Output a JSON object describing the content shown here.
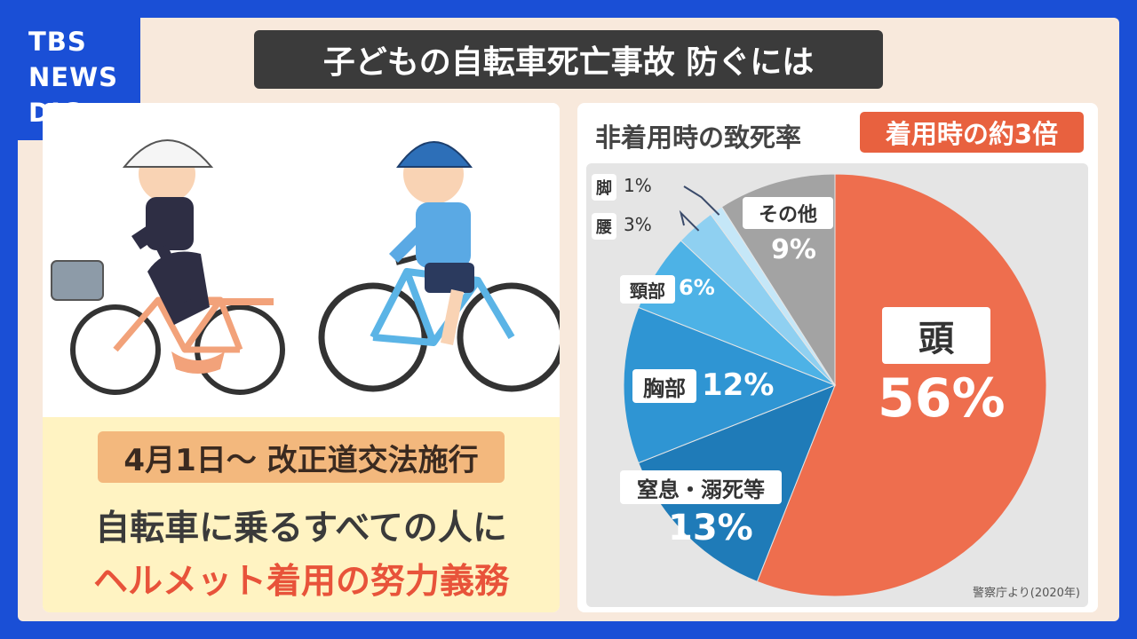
{
  "logo": {
    "line1": "TBS",
    "line2": "NEWS",
    "line3": "DIG"
  },
  "title": "子どもの自転車死亡事故 防ぐには",
  "left": {
    "date_law": "4月1日〜 改正道交法施行",
    "line1": "自転車に乗るすべての人に",
    "line2": "ヘルメット着用の努力義務"
  },
  "colors": {
    "brand": "#1a4fd6",
    "accent": "#e8613f",
    "emphasis": "#e8533a"
  },
  "chart_data": {
    "type": "pie",
    "title": "非着用時の致死率",
    "badge": "着用時の約3倍",
    "source": "警察庁より(2020年)",
    "slices": [
      {
        "name": "頭",
        "value": 56,
        "label": "56%",
        "color": "#ee6e4e"
      },
      {
        "name": "窒息・溺死等",
        "value": 13,
        "label": "13%",
        "color": "#1f7bb8"
      },
      {
        "name": "胸部",
        "value": 12,
        "label": "12%",
        "color": "#2f95d3"
      },
      {
        "name": "頸部",
        "value": 6,
        "label": "6%",
        "color": "#4db2e6"
      },
      {
        "name": "腰",
        "value": 3,
        "label": "3%",
        "color": "#8fd0f1"
      },
      {
        "name": "脚",
        "value": 1,
        "label": "1%",
        "color": "#c5e7f8"
      },
      {
        "name": "その他",
        "value": 9,
        "label": "9%",
        "color": "#a3a3a3"
      }
    ]
  }
}
